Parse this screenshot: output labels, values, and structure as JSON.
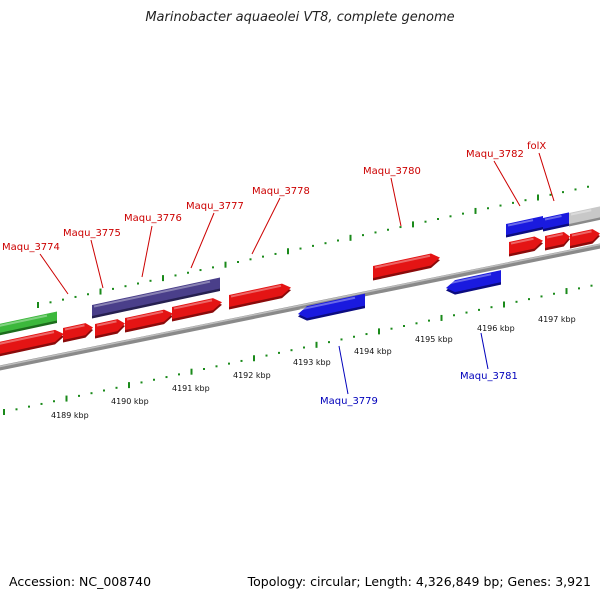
{
  "title": "Marinobacter aquaeolei VT8, complete genome",
  "footer": {
    "accession": "Accession: NC_008740",
    "summary": "Topology: circular; Length: 4,326,849 bp; Genes: 3,921"
  },
  "colors": {
    "forward_gene": "#e41414",
    "reverse_gene": "#1a1adf",
    "label_forward": "#cc0000",
    "label_reverse": "#0000bb",
    "rrna": "#3cb83c",
    "pseudo": "#4a3f8a",
    "other": "#c8c8c8",
    "backbone": "#8a8a8a",
    "ticks": "#1a8a1a"
  },
  "genes_top": [
    {
      "name": "Maqu_3774",
      "strand": "forward"
    },
    {
      "name": "Maqu_3775",
      "strand": "forward"
    },
    {
      "name": "Maqu_3776",
      "strand": "forward"
    },
    {
      "name": "Maqu_3777",
      "strand": "forward"
    },
    {
      "name": "Maqu_3778",
      "strand": "forward"
    },
    {
      "name": "Maqu_3780",
      "strand": "forward"
    },
    {
      "name": "Maqu_3782",
      "strand": "forward"
    },
    {
      "name": "folX",
      "strand": "forward"
    }
  ],
  "genes_bottom": [
    {
      "name": "Maqu_3779",
      "strand": "reverse"
    },
    {
      "name": "Maqu_3781",
      "strand": "reverse"
    }
  ],
  "scale_labels": [
    "4189 kbp",
    "4190 kbp",
    "4191 kbp",
    "4192 kbp",
    "4193 kbp",
    "4194 kbp",
    "4195 kbp",
    "4196 kbp",
    "4197 kbp"
  ]
}
